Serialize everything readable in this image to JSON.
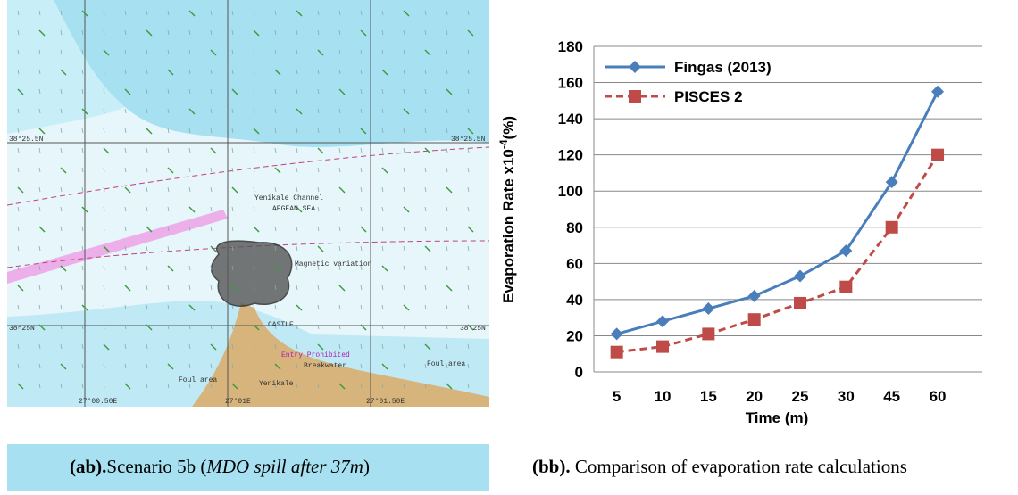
{
  "map": {
    "labels": [
      "Yenikale Channel",
      "AEGEAN SEA",
      "Magnetic variation",
      "CASTLE",
      "Breakwater",
      "Entry Prohibited",
      "Foul area",
      "Foul area",
      "Yenikale"
    ],
    "coords": [
      "38°25.5N",
      "38°25.5N",
      "38°25N",
      "38°25N",
      "27°00.50E",
      "27°01E",
      "27°01.50E"
    ]
  },
  "captions": {
    "left": {
      "label": "(ab).",
      "text": "Scenario 5b (",
      "italic": "MDO spill after 37m",
      "end": ")"
    },
    "right": {
      "label": "(bb).",
      "text": " Comparison of evaporation rate calculations"
    }
  },
  "chart_data": {
    "type": "line",
    "xlabel": "Time (m)",
    "ylabel": {
      "text": "Evaporation Rate x10",
      "superscript": "-4",
      "suffix": "(%)"
    },
    "categories": [
      "5",
      "10",
      "15",
      "20",
      "25",
      "30",
      "45",
      "60"
    ],
    "series": [
      {
        "name": "Fingas (2013)",
        "color": "#4a7ebb",
        "marker": "diamond",
        "dash": "solid",
        "values": [
          21,
          28,
          35,
          42,
          53,
          67,
          105,
          155
        ]
      },
      {
        "name": "PISCES 2",
        "color": "#be4b48",
        "marker": "square",
        "dash": "dashed",
        "values": [
          11,
          14,
          21,
          29,
          38,
          47,
          80,
          120
        ]
      }
    ],
    "ylim": [
      0,
      180
    ],
    "yticks": [
      0,
      20,
      40,
      60,
      80,
      100,
      120,
      140,
      160,
      180
    ],
    "grid": true,
    "legend": "top-left"
  }
}
